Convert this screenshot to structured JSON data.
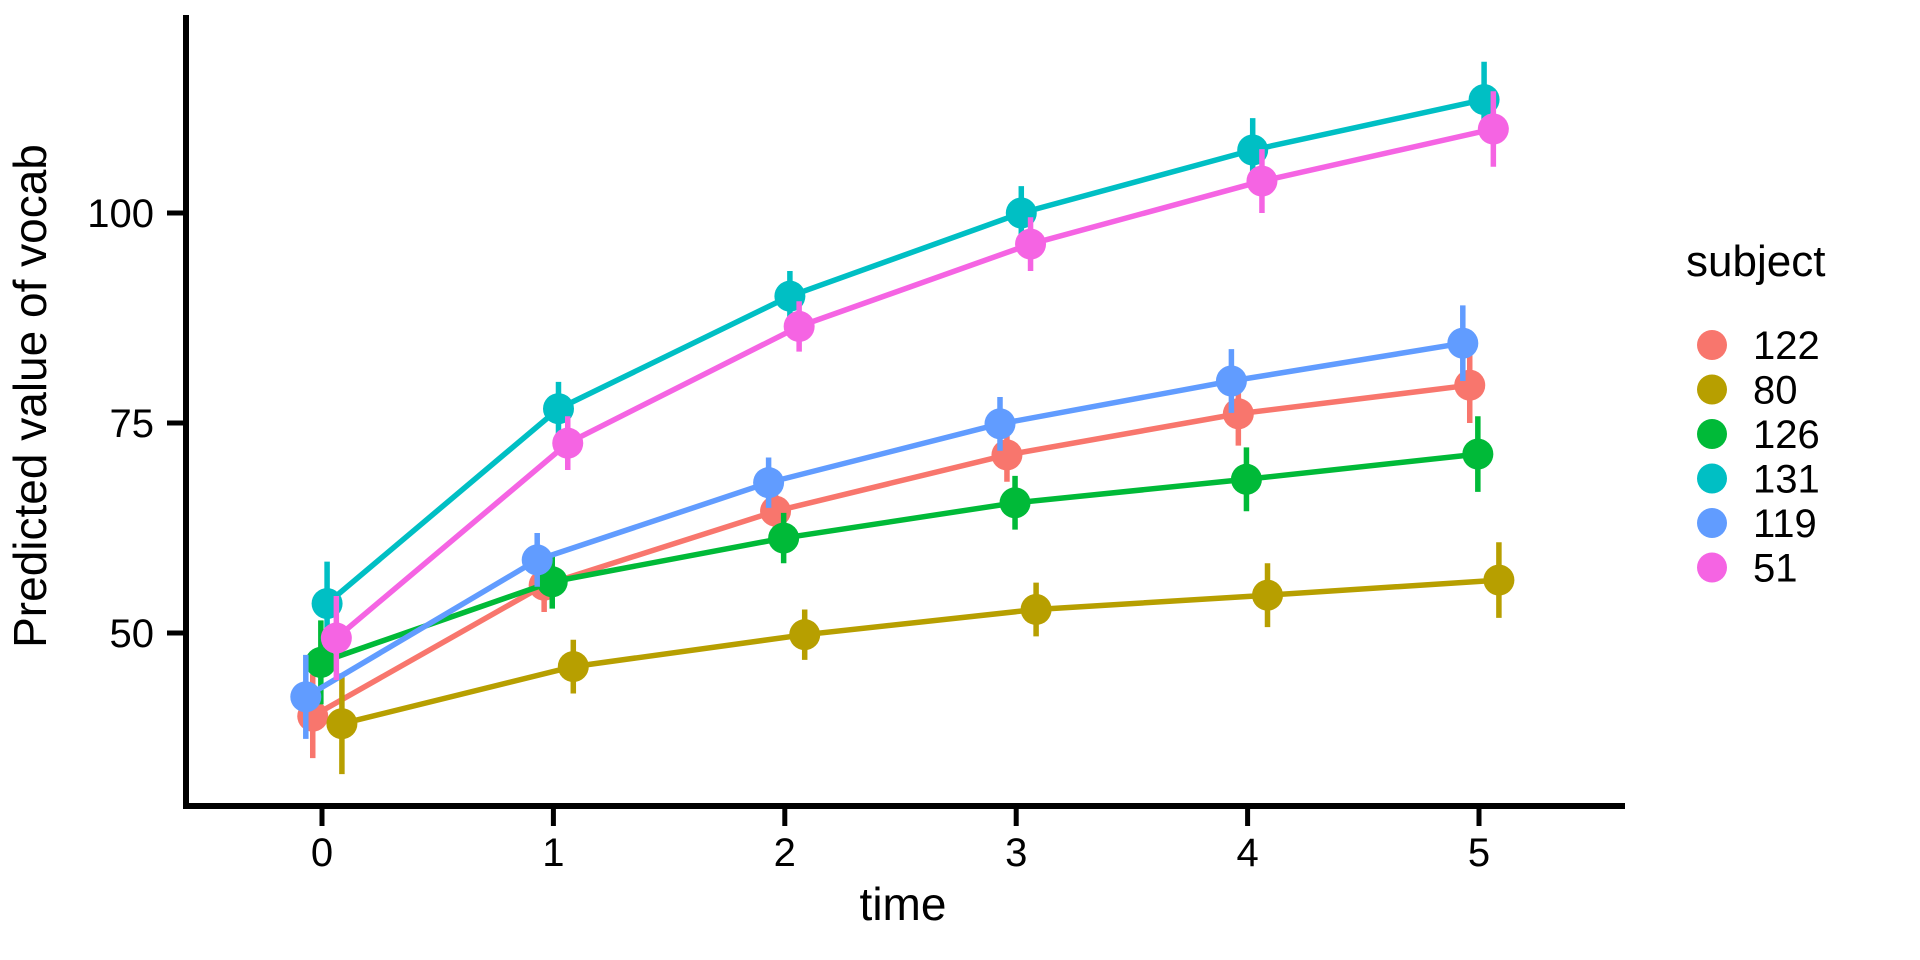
{
  "chart_data": {
    "type": "line",
    "title": "",
    "xlabel": "time",
    "ylabel": "Predicted value of vocab",
    "legend_title": "subject",
    "legend_position": "right",
    "grid": false,
    "background": "#ffffff",
    "axis_color": "#000000",
    "x_ticks": [
      0,
      1,
      2,
      3,
      4,
      5
    ],
    "y_ticks": [
      50,
      75,
      100
    ],
    "xlim": [
      -0.6,
      5.63
    ],
    "ylim": [
      29.4,
      123.6
    ],
    "x": [
      0,
      1,
      2,
      3,
      4,
      5
    ],
    "series": [
      {
        "name": "122",
        "color": "#F8766D",
        "x_offset": -0.04,
        "values": [
          40.1,
          55.7,
          64.5,
          71.2,
          76.1,
          79.5
        ],
        "errors": [
          5.0,
          3.2,
          3.0,
          3.2,
          3.8,
          4.5
        ]
      },
      {
        "name": "80",
        "color": "#B79F00",
        "x_offset": 0.086,
        "values": [
          39.2,
          46.0,
          49.8,
          52.8,
          54.5,
          56.3
        ],
        "errors": [
          6.0,
          3.2,
          3.0,
          3.2,
          3.8,
          4.5
        ]
      },
      {
        "name": "126",
        "color": "#00BA38",
        "x_offset": -0.005,
        "values": [
          46.5,
          56.1,
          61.3,
          65.5,
          68.3,
          71.3
        ],
        "errors": [
          5.0,
          3.2,
          3.0,
          3.2,
          3.8,
          4.5
        ]
      },
      {
        "name": "131",
        "color": "#00BFC4",
        "x_offset": 0.022,
        "values": [
          53.5,
          76.7,
          90.1,
          100.0,
          107.5,
          113.5
        ],
        "errors": [
          5.0,
          3.2,
          3.0,
          3.2,
          3.8,
          4.5
        ]
      },
      {
        "name": "119",
        "color": "#619CFF",
        "x_offset": -0.07,
        "values": [
          42.4,
          58.7,
          67.9,
          74.9,
          80.0,
          84.5
        ],
        "errors": [
          5.0,
          3.2,
          3.0,
          3.2,
          3.8,
          4.5
        ]
      },
      {
        "name": "51",
        "color": "#F564E3",
        "x_offset": 0.062,
        "values": [
          49.4,
          72.6,
          86.5,
          96.3,
          103.8,
          110.0
        ],
        "errors": [
          5.0,
          3.2,
          3.0,
          3.2,
          3.8,
          4.5
        ]
      }
    ]
  }
}
